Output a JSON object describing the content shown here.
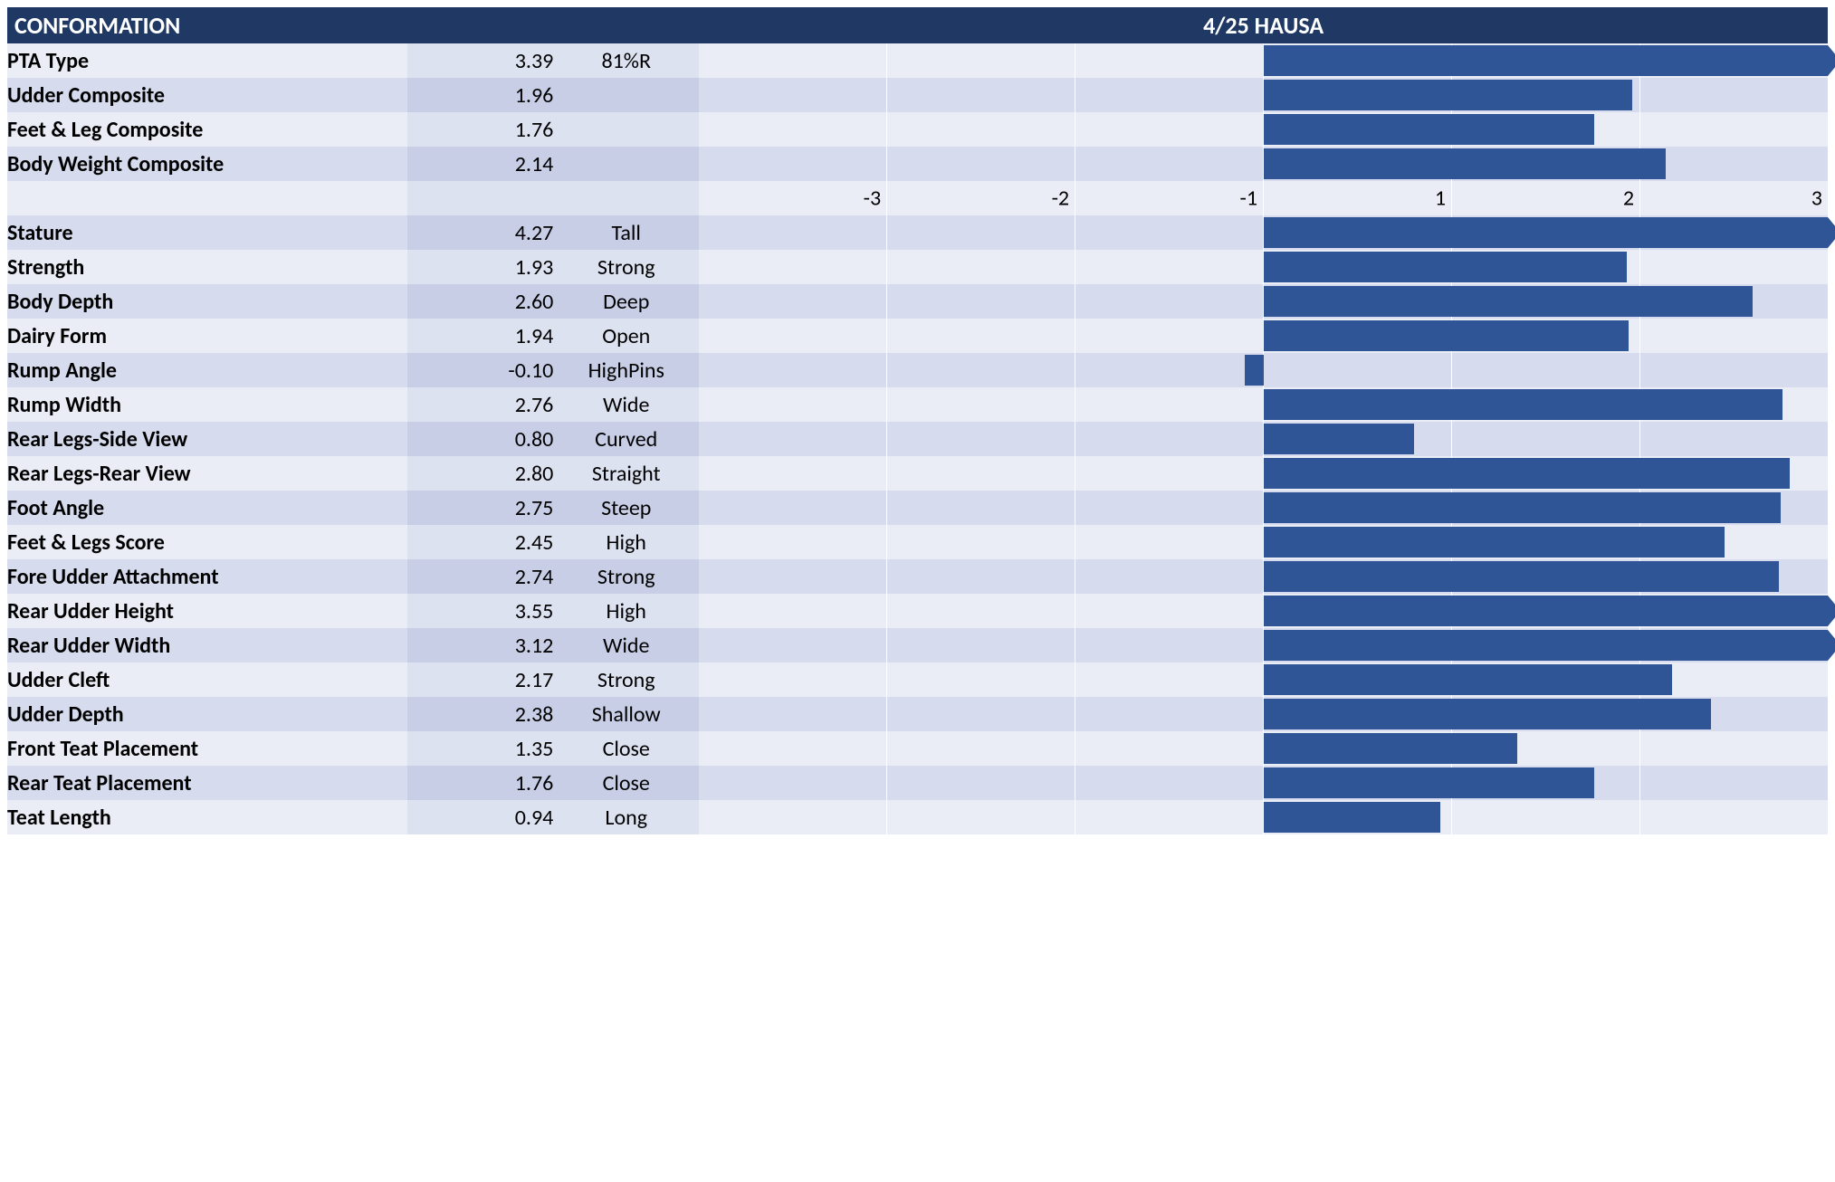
{
  "header": {
    "title_left": "CONFORMATION",
    "title_right": "4/25 HAUSA",
    "bg_color": "#1f3864",
    "text_color": "#ffffff",
    "font_size": 26
  },
  "chart": {
    "scale_min": -3,
    "scale_max": 3,
    "bar_color": "#2f5597",
    "grid_color": "#ffffff",
    "row_colors": {
      "even": "#d6dcee",
      "odd": "#eaedf6"
    },
    "value_cell_colors": {
      "even": "#c7cee6",
      "odd": "#dde2f0"
    },
    "font_size": 24,
    "axis_ticks": [
      -3,
      -2,
      -1,
      1,
      2,
      3
    ]
  },
  "composites": [
    {
      "name": "PTA Type",
      "value": "3.39",
      "desc": "81%R",
      "num": 3.39
    },
    {
      "name": "Udder Composite",
      "value": "1.96",
      "desc": "",
      "num": 1.96
    },
    {
      "name": "Feet & Leg Composite",
      "value": "1.76",
      "desc": "",
      "num": 1.76
    },
    {
      "name": "Body Weight Composite",
      "value": "2.14",
      "desc": "",
      "num": 2.14
    }
  ],
  "axis_row": {
    "labels": [
      "-3",
      "-2",
      "-1",
      "",
      "1",
      "2",
      "3"
    ]
  },
  "traits": [
    {
      "name": "Stature",
      "value": "4.27",
      "desc": "Tall",
      "num": 4.27
    },
    {
      "name": "Strength",
      "value": "1.93",
      "desc": "Strong",
      "num": 1.93
    },
    {
      "name": "Body Depth",
      "value": "2.60",
      "desc": "Deep",
      "num": 2.6
    },
    {
      "name": "Dairy Form",
      "value": "1.94",
      "desc": "Open",
      "num": 1.94
    },
    {
      "name": "Rump Angle",
      "value": "-0.10",
      "desc": "HighPins",
      "num": -0.1
    },
    {
      "name": "Rump Width",
      "value": "2.76",
      "desc": "Wide",
      "num": 2.76
    },
    {
      "name": "Rear Legs-Side View",
      "value": "0.80",
      "desc": "Curved",
      "num": 0.8
    },
    {
      "name": "Rear Legs-Rear View",
      "value": "2.80",
      "desc": "Straight",
      "num": 2.8
    },
    {
      "name": "Foot Angle",
      "value": "2.75",
      "desc": "Steep",
      "num": 2.75
    },
    {
      "name": "Feet & Legs Score",
      "value": "2.45",
      "desc": "High",
      "num": 2.45
    },
    {
      "name": "Fore Udder Attachment",
      "value": "2.74",
      "desc": "Strong",
      "num": 2.74
    },
    {
      "name": "Rear Udder Height",
      "value": "3.55",
      "desc": "High",
      "num": 3.55
    },
    {
      "name": "Rear Udder Width",
      "value": "3.12",
      "desc": "Wide",
      "num": 3.12
    },
    {
      "name": "Udder Cleft",
      "value": "2.17",
      "desc": "Strong",
      "num": 2.17
    },
    {
      "name": "Udder Depth",
      "value": "2.38",
      "desc": "Shallow",
      "num": 2.38
    },
    {
      "name": "Front Teat Placement",
      "value": "1.35",
      "desc": "Close",
      "num": 1.35
    },
    {
      "name": "Rear Teat Placement",
      "value": "1.76",
      "desc": "Close",
      "num": 1.76
    },
    {
      "name": "Teat Length",
      "value": "0.94",
      "desc": "Long",
      "num": 0.94
    }
  ]
}
